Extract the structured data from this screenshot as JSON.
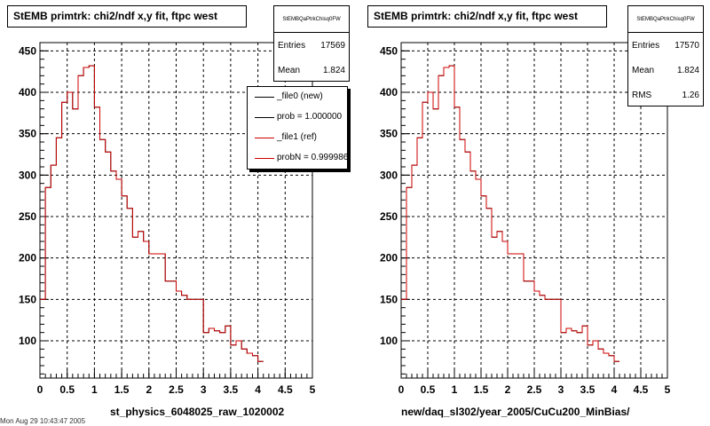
{
  "colors": {
    "ref": "#cc0000",
    "new": "#000000"
  },
  "footer": "Mon Aug 29 10:43:47 2005",
  "chart_data": [
    {
      "type": "histogram",
      "title": "StEMB primtrk: chi2/ndf x,y fit, ftpc west",
      "xlabel": "st_physics_6048025_raw_1020002",
      "xlim": [
        0,
        5
      ],
      "ylim": [
        55,
        460
      ],
      "xticks": [
        "0",
        "0.5",
        "1",
        "1.5",
        "2",
        "2.5",
        "3",
        "3.5",
        "4",
        "4.5",
        "5"
      ],
      "yticks": [
        "100",
        "150",
        "200",
        "250",
        "300",
        "350",
        "400",
        "450"
      ],
      "grid": true,
      "bin_width": 0.1,
      "values": [
        150,
        285,
        312,
        345,
        388,
        400,
        380,
        420,
        430,
        432,
        382,
        343,
        328,
        305,
        295,
        275,
        260,
        225,
        232,
        220,
        205,
        205,
        205,
        172,
        172,
        160,
        155,
        150,
        150,
        150,
        110,
        115,
        112,
        110,
        118,
        95,
        100,
        90,
        85,
        82,
        75
      ],
      "stats": {
        "name": "StEMBQaPtrkChisq0FW",
        "entries_label": "Entries",
        "entries": "17569",
        "mean_label": "Mean",
        "mean": "1.824"
      },
      "legend": [
        {
          "label": "_file0 (new)",
          "color": "#000000"
        },
        {
          "label": "prob = 1.000000",
          "color": "#000000"
        },
        {
          "label": "_file1 (ref)",
          "color": "#cc0000"
        },
        {
          "label": "probN = 0.999986",
          "color": "#cc0000"
        }
      ]
    },
    {
      "type": "histogram",
      "title": "StEMB primtrk: chi2/ndf x,y fit, ftpc west",
      "xlabel": "new/daq_sl302/year_2005/CuCu200_MinBias/",
      "xlim": [
        0,
        5
      ],
      "ylim": [
        55,
        460
      ],
      "xticks": [
        "0",
        "0.5",
        "1",
        "1.5",
        "2",
        "2.5",
        "3",
        "3.5",
        "4",
        "4.5",
        "5"
      ],
      "yticks": [
        "100",
        "150",
        "200",
        "250",
        "300",
        "350",
        "400",
        "450"
      ],
      "grid": true,
      "bin_width": 0.1,
      "values": [
        150,
        285,
        312,
        345,
        388,
        400,
        380,
        420,
        430,
        432,
        382,
        343,
        328,
        305,
        295,
        275,
        260,
        225,
        232,
        220,
        205,
        205,
        205,
        172,
        172,
        160,
        155,
        150,
        150,
        150,
        110,
        115,
        112,
        110,
        118,
        95,
        100,
        90,
        85,
        82,
        75
      ],
      "stats": {
        "name": "StEMBQaPtrkChisq0FW",
        "entries_label": "Entries",
        "entries": "17570",
        "mean_label": "Mean",
        "mean": "1.824",
        "rms_label": "RMS",
        "rms": "1.26"
      }
    }
  ]
}
